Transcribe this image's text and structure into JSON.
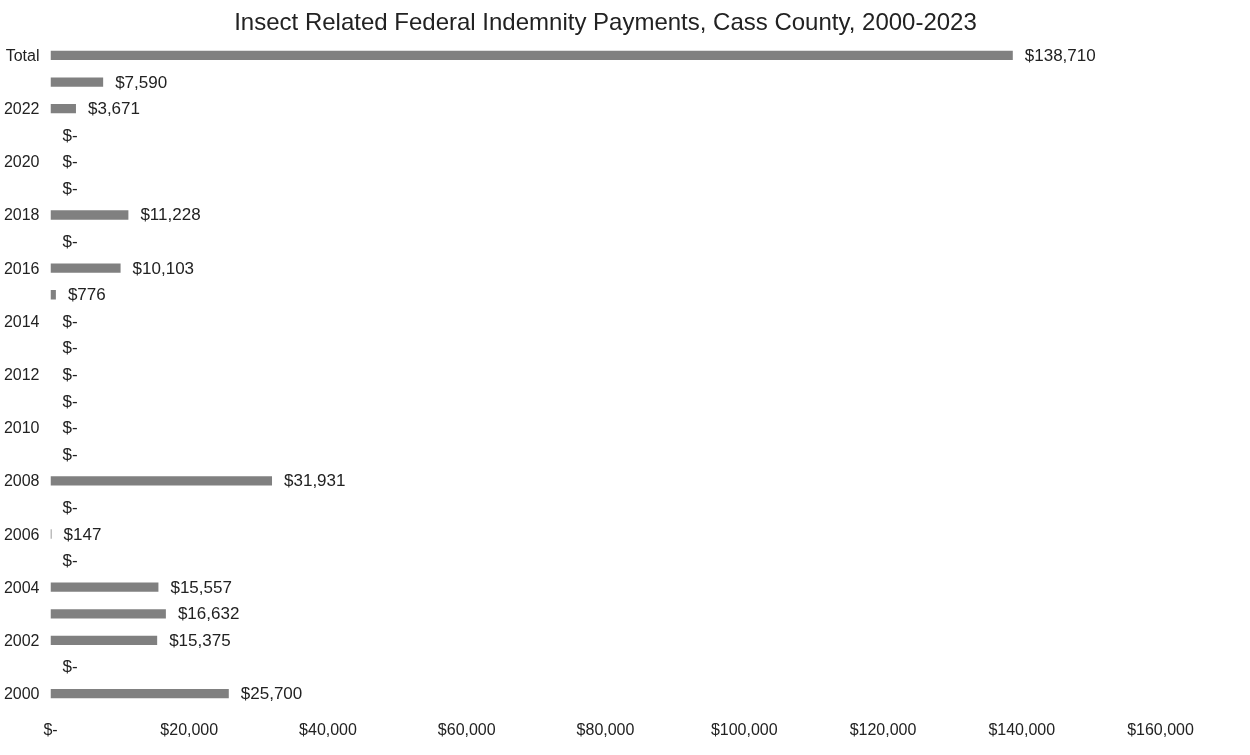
{
  "chart_data": {
    "type": "bar",
    "orientation": "horizontal",
    "title": "Insect Related Federal Indemnity Payments, Cass County, 2000-2023",
    "categories": [
      "Total",
      null,
      "2022",
      null,
      "2020",
      null,
      "2018",
      null,
      "2016",
      null,
      "2014",
      null,
      "2012",
      null,
      "2010",
      null,
      "2008",
      null,
      "2006",
      null,
      "2004",
      null,
      "2002",
      null,
      "2000"
    ],
    "values": [
      138710,
      7590,
      3671,
      0,
      0,
      0,
      11228,
      0,
      10103,
      776,
      0,
      0,
      0,
      0,
      0,
      0,
      31931,
      0,
      147,
      0,
      15557,
      16632,
      15375,
      0,
      25700
    ],
    "value_labels": [
      "$138,710",
      "$7,590",
      "$3,671",
      "$-",
      "$-",
      "$-",
      "$11,228",
      "$-",
      "$10,103",
      "$776",
      "$-",
      "$-",
      "$-",
      "$-",
      "$-",
      "$-",
      "$31,931",
      "$-",
      "$147",
      "$-",
      "$15,557",
      "$16,632",
      "$15,375",
      "$-",
      "$25,700"
    ],
    "color": "#808080",
    "xlim": [
      0,
      160000
    ],
    "xticks": [
      {
        "value": 0,
        "label": "$-"
      },
      {
        "value": 20000,
        "label": "$20,000"
      },
      {
        "value": 40000,
        "label": "$40,000"
      },
      {
        "value": 60000,
        "label": "$60,000"
      },
      {
        "value": 80000,
        "label": "$80,000"
      },
      {
        "value": 100000,
        "label": "$100,000"
      },
      {
        "value": 120000,
        "label": "$120,000"
      },
      {
        "value": 140000,
        "label": "$140,000"
      },
      {
        "value": 160000,
        "label": "$160,000"
      }
    ],
    "grid": false
  }
}
